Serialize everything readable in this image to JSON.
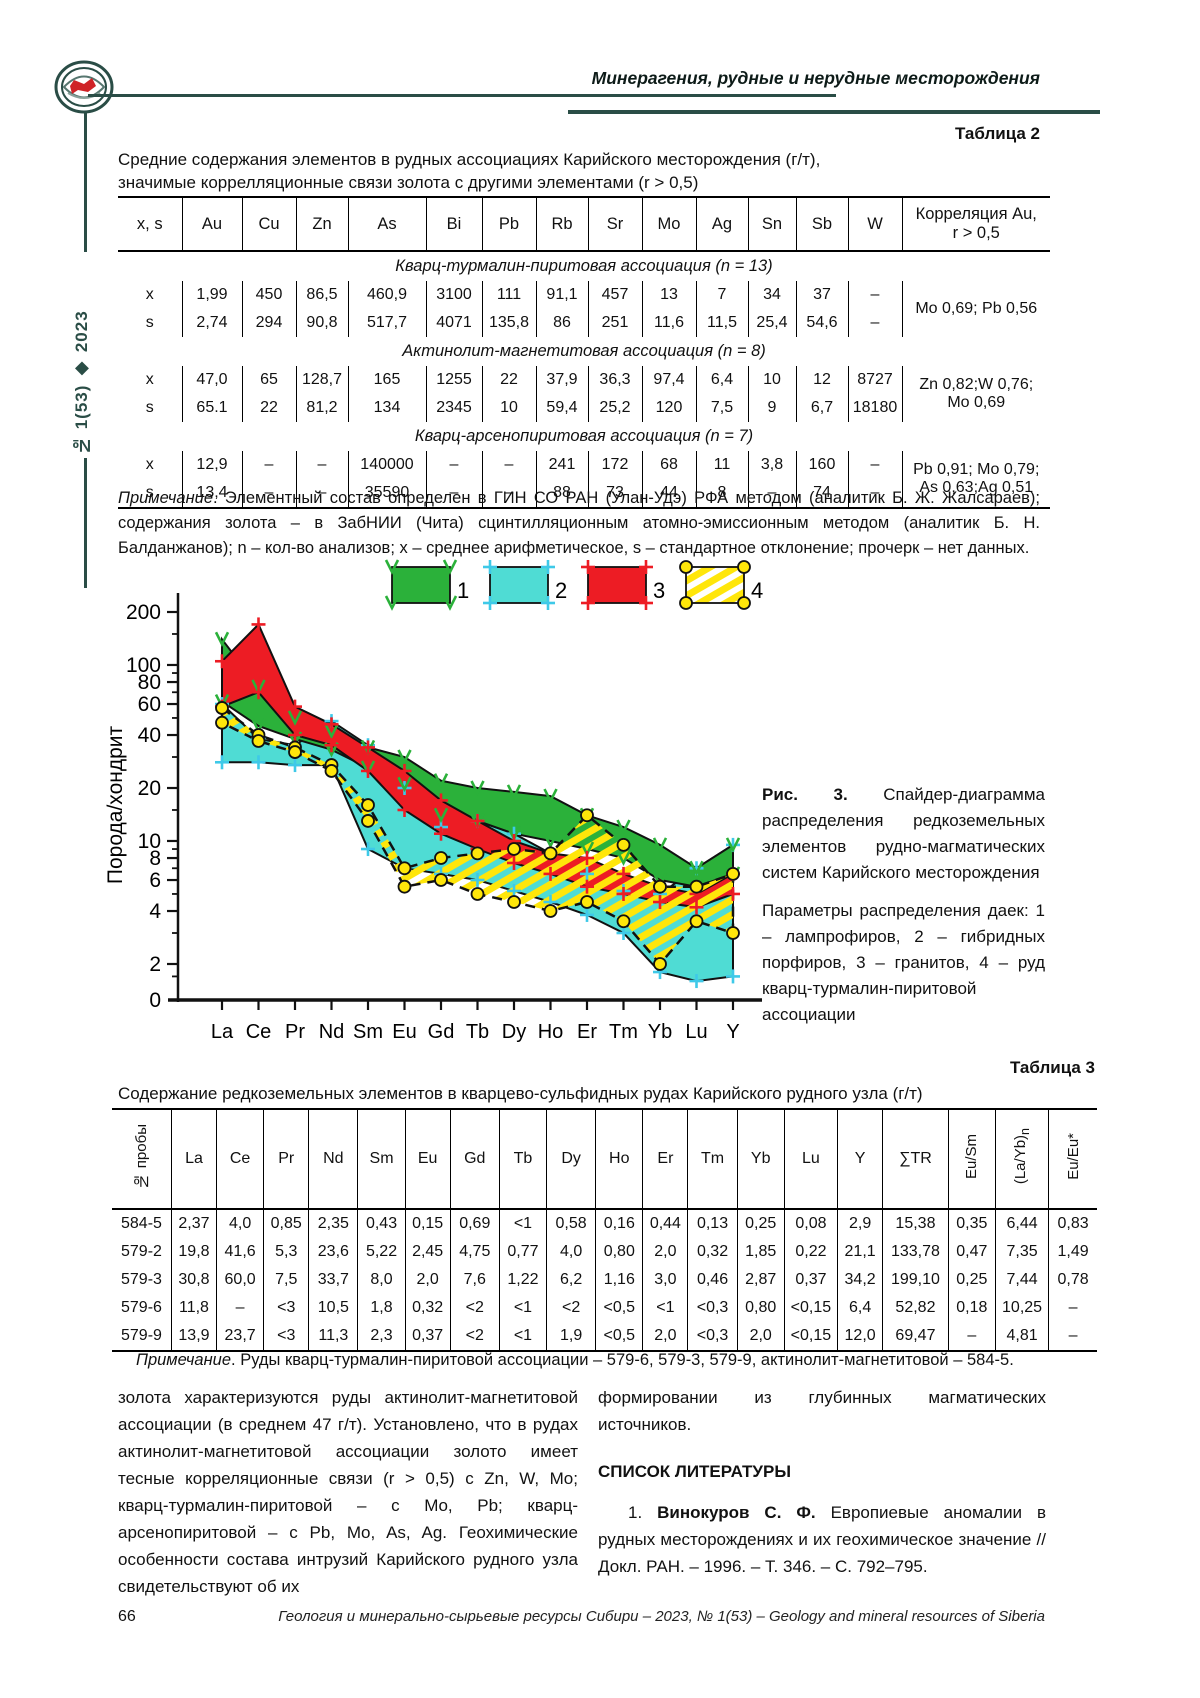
{
  "header": {
    "journal_line": "Минерагения, рудные и нерудные месторождения",
    "sidebar_issue": "№ 1(53) ◆ 2023"
  },
  "table2": {
    "label": "Таблица 2",
    "title_line1": "Средние содержания элементов в рудных ассоциациях Карийского месторождения (г/т),",
    "title_line2": "значимые коррелляционные связи золота с другими элементами (r > 0,5)",
    "columns": [
      "x, s",
      "Au",
      "Cu",
      "Zn",
      "As",
      "Bi",
      "Pb",
      "Rb",
      "Sr",
      "Mo",
      "Ag",
      "Sn",
      "Sb",
      "W"
    ],
    "corr_header_1": "Корреляция Au,",
    "corr_header_2": "r > 0,5",
    "sections": [
      {
        "name": "Кварц-турмалин-пиритовая ассоциация (n = 13)",
        "row_x": [
          "1,99",
          "450",
          "86,5",
          "460,9",
          "3100",
          "111",
          "91,1",
          "457",
          "13",
          "7",
          "34",
          "37",
          "–"
        ],
        "row_s": [
          "2,74",
          "294",
          "90,8",
          "517,7",
          "4071",
          "135,8",
          "86",
          "251",
          "11,6",
          "11,5",
          "25,4",
          "54,6",
          "–"
        ],
        "corr_lines": [
          "Mo 0,69; Pb 0,56"
        ]
      },
      {
        "name": "Актинолит-магнетитовая ассоциация (n = 8)",
        "row_x": [
          "47,0",
          "65",
          "128,7",
          "165",
          "1255",
          "22",
          "37,9",
          "36,3",
          "97,4",
          "6,4",
          "10",
          "12",
          "8727"
        ],
        "row_s": [
          "65.1",
          "22",
          "81,2",
          "134",
          "2345",
          "10",
          "59,4",
          "25,2",
          "120",
          "7,5",
          "9",
          "6,7",
          "18180"
        ],
        "corr_lines": [
          "Zn 0,82;W 0,76;",
          "Mo 0,69"
        ]
      },
      {
        "name": "Кварц-арсенопиритовая ассоциация (n = 7)",
        "row_x": [
          "12,9",
          "–",
          "–",
          "140000",
          "–",
          "–",
          "241",
          "172",
          "68",
          "11",
          "3,8",
          "160",
          "–"
        ],
        "row_s": [
          "13,4",
          "–",
          "–",
          "35590",
          "–",
          "–",
          "88",
          "73",
          "44",
          "8",
          "–",
          "74",
          "–"
        ],
        "corr_lines": [
          "Pb 0,91; Mo 0,79;",
          "As 0,63;Ag 0,51"
        ]
      }
    ],
    "note_lead": "Примечание",
    "note_text": ". Элементный состав определен в ГИН СО РАН (Улан-Удэ) РФА методом (аналитик Б. Ж. Жалсараев); содержания золота – в ЗабНИИ (Чита) сцинтилляционным атомно-эмиссионным методом (аналитик Б. Н. Балданжанов); n – кол-во анализов; x – среднее арифметическое, s – стандартное отклонение; прочерк – нет данных."
  },
  "chart_data": {
    "type": "area",
    "title": "Спайдер-диаграмма распределения редкоземельных элементов рудно-магматических систем Карийского месторождения",
    "ylabel": "Порода/хондрит",
    "yscale": "log",
    "ylim": [
      1.5,
      240
    ],
    "origin_label": "0",
    "y_major_ticks": [
      200,
      100,
      80,
      60,
      40,
      20,
      10,
      8,
      6,
      4,
      2
    ],
    "y_minor_ticks": [
      150,
      90,
      70,
      50,
      30,
      15,
      9,
      7,
      5,
      3,
      1.7
    ],
    "categories": [
      "La",
      "Ce",
      "Pr",
      "Nd",
      "Sm",
      "Eu",
      "Gd",
      "Tb",
      "Dy",
      "Ho",
      "Er",
      "Tm",
      "Yb",
      "Lu",
      "Y"
    ],
    "legend": [
      "1",
      "2",
      "3",
      "4"
    ],
    "legend_position": "top",
    "series": [
      {
        "name": "лампрофиры",
        "legend_num": "1",
        "color": "#2bb13a",
        "mcolor": "#2bb13a",
        "marker": "check",
        "hatch": false,
        "z": 2,
        "upper": [
          140,
          75,
          50,
          42,
          34,
          30,
          22,
          20,
          19,
          18,
          14,
          12,
          9.5,
          7,
          9.5
        ],
        "lower": [
          62,
          45,
          38,
          33,
          26,
          21,
          14,
          13,
          11,
          10,
          9,
          8,
          6,
          5.5,
          6.5
        ]
      },
      {
        "name": "гибридные порфиры",
        "legend_num": "2",
        "color": "#4fdcd4",
        "mcolor": "#3ec9e8",
        "marker": "plus",
        "hatch": false,
        "z": 1,
        "upper": [
          60,
          38,
          35,
          48,
          35,
          20,
          12,
          13,
          11,
          8.5,
          6.5,
          5.2,
          5,
          7,
          9.5
        ],
        "lower": [
          28,
          28,
          27,
          27,
          9,
          7,
          6.5,
          6,
          5.2,
          4.5,
          3.8,
          3,
          1.8,
          1.6,
          1.7
        ]
      },
      {
        "name": "граниты",
        "legend_num": "3",
        "color": "#ed1c24",
        "mcolor": "#ed1c24",
        "marker": "plus",
        "hatch": false,
        "z": 3,
        "upper": [
          105,
          170,
          58,
          46,
          34,
          25,
          17,
          13,
          10,
          8.5,
          8,
          6.5,
          5.5,
          5,
          6.5
        ],
        "lower": [
          58,
          70,
          40,
          35,
          25,
          15,
          11,
          9,
          7.5,
          6.5,
          5.5,
          5,
          4.5,
          4.2,
          5
        ]
      },
      {
        "name": "руды кварц-турмалин-пиритовой ассоциации",
        "legend_num": "4",
        "color": "#ffe60a",
        "mcolor": "#ffe60a",
        "marker": "circle",
        "hatch": true,
        "z": 4,
        "upper": [
          57,
          40,
          34,
          27,
          16,
          7,
          8,
          8.5,
          9,
          8.5,
          14,
          9.5,
          5.5,
          5.5,
          6.5
        ],
        "lower": [
          47,
          37,
          32,
          25,
          13,
          5.5,
          6,
          5,
          4.5,
          4,
          4.5,
          3.5,
          2,
          3.5,
          3
        ]
      }
    ]
  },
  "figure": {
    "label": "Рис. 3.",
    "caption": " Спайдер-диаграмма распределения редкоземельных элементов рудно-магматических систем Карийского месторождения",
    "params": "Параметры распределения даек: 1 – лампрофиров, 2 – гибридных порфиров, 3 – гранитов, 4 – руд кварц-турмалин-пиритовой ассоциации"
  },
  "table3": {
    "label": "Таблица 3",
    "title": "Содержание редкоземельных элементов в кварцево-сульфидных рудах Карийского рудного узла (г/т)",
    "col_id": "№ пробы",
    "columns": [
      "La",
      "Ce",
      "Pr",
      "Nd",
      "Sm",
      "Eu",
      "Gd",
      "Tb",
      "Dy",
      "Ho",
      "Er",
      "Tm",
      "Yb",
      "Lu",
      "Y",
      "∑TR"
    ],
    "col_eusm": "Eu/Sm",
    "col_layb": "(La/Yb)",
    "col_layb_sub": "n",
    "col_eueu": "Eu/Eu*",
    "rows": [
      {
        "id": "584-5",
        "values": [
          "2,37",
          "4,0",
          "0,85",
          "2,35",
          "0,43",
          "0,15",
          "0,69",
          "<1",
          "0,58",
          "0,16",
          "0,44",
          "0,13",
          "0,25",
          "0,08",
          "2,9",
          "15,38",
          "0,35",
          "6,44",
          "0,83"
        ]
      },
      {
        "id": "579-2",
        "values": [
          "19,8",
          "41,6",
          "5,3",
          "23,6",
          "5,22",
          "2,45",
          "4,75",
          "0,77",
          "4,0",
          "0,80",
          "2,0",
          "0,32",
          "1,85",
          "0,22",
          "21,1",
          "133,78",
          "0,47",
          "7,35",
          "1,49"
        ]
      },
      {
        "id": "579-3",
        "values": [
          "30,8",
          "60,0",
          "7,5",
          "33,7",
          "8,0",
          "2,0",
          "7,6",
          "1,22",
          "6,2",
          "1,16",
          "3,0",
          "0,46",
          "2,87",
          "0,37",
          "34,2",
          "199,10",
          "0,25",
          "7,44",
          "0,78"
        ]
      },
      {
        "id": "579-6",
        "values": [
          "11,8",
          "–",
          "<3",
          "10,5",
          "1,8",
          "0,32",
          "<2",
          "<1",
          "<2",
          "<0,5",
          "<1",
          "<0,3",
          "0,80",
          "<0,15",
          "6,4",
          "52,82",
          "0,18",
          "10,25",
          "–"
        ]
      },
      {
        "id": "579-9",
        "values": [
          "13,9",
          "23,7",
          "<3",
          "11,3",
          "2,3",
          "0,37",
          "<2",
          "<1",
          "1,9",
          "<0,5",
          "2,0",
          "<0,3",
          "2,0",
          "<0,15",
          "12,0",
          "69,47",
          "–",
          "4,81",
          "–"
        ]
      }
    ],
    "note_lead": "Примечание",
    "note_text": ". Руды кварц-турмалин-пиритовой ассоциации – 579-6, 579-3, 579-9, актинолит-магнетитовой – 584-5."
  },
  "body": {
    "left_col": "золота характеризуются руды актинолит-магнетитовой ассоциации (в среднем 47 г/т). Установлено, что в рудах актинолит-магнетитовой ассоциации золото имеет тесные корреляционные связи (r > 0,5) с Zn, W, Mo; кварц-турмалин-пиритовой – с Mo, Pb; кварц-арсенопиритовой – с Pb, Mo, As, Ag. Геохимические особенности состава интрузий Карийского рудного узла свидетельствуют об их",
    "right_col_p1": "формировании из глубинных магматических источников.",
    "references_heading": "СПИСОК ЛИТЕРАТУРЫ",
    "ref_num": "1. ",
    "ref_author": "Винокуров С. Ф.",
    "ref_text": " Европиевые аномалии в рудных месторождениях и их геохимическое значение // Докл. РАН. – 1996. – Т. 346. – С. 792–795."
  },
  "footer": {
    "page_number": "66",
    "journal_line": "Геология и минерально-сырьевые ресурсы Сибири – 2023, № 1(53) – Geology and mineral resources of Siberia"
  }
}
